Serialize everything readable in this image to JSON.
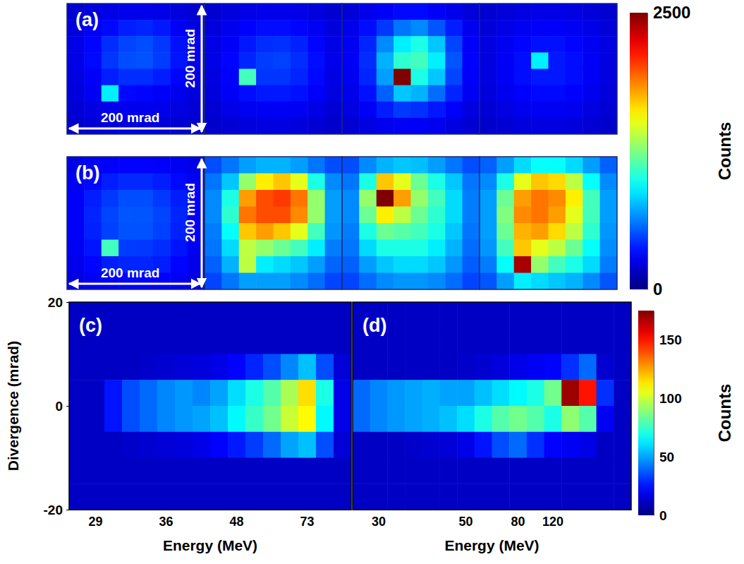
{
  "chart_data": [
    {
      "type": "heatmap",
      "title": "(a)",
      "annotations": [
        "200 mrad",
        "200 mrad"
      ],
      "tick_labels": false,
      "xlim": [
        -100,
        100
      ],
      "ylim": [
        -100,
        100
      ],
      "colorbar": {
        "range": [
          0,
          2500
        ],
        "ticks": [
          0,
          2500
        ],
        "label": "Counts"
      },
      "panels": [
        {
          "cells": [
            [
              200,
              230,
              250,
              260,
              260,
              250,
              230,
              200
            ],
            [
              230,
              280,
              330,
              380,
              400,
              370,
              300,
              240
            ],
            [
              250,
              320,
              420,
              480,
              500,
              450,
              350,
              260
            ],
            [
              250,
              330,
              440,
              500,
              510,
              460,
              360,
              260
            ],
            [
              240,
              300,
              380,
              420,
              420,
              380,
              320,
              250
            ],
            [
              230,
              280,
              900,
              330,
              320,
              300,
              270,
              230
            ],
            [
              210,
              240,
              260,
              270,
              270,
              260,
              240,
              210
            ],
            [
              190,
              210,
              220,
              230,
              230,
              220,
              210,
              190
            ]
          ]
        },
        {
          "cells": [
            [
              200,
              230,
              250,
              260,
              260,
              250,
              230,
              200
            ],
            [
              230,
              270,
              310,
              340,
              340,
              320,
              280,
              230
            ],
            [
              250,
              300,
              370,
              420,
              430,
              390,
              320,
              250
            ],
            [
              250,
              320,
              400,
              460,
              470,
              420,
              340,
              260
            ],
            [
              240,
              310,
              1100,
              440,
              440,
              400,
              330,
              250
            ],
            [
              230,
              290,
              340,
              370,
              370,
              350,
              300,
              240
            ],
            [
              210,
              250,
              280,
              290,
              290,
              280,
              250,
              210
            ],
            [
              190,
              210,
              230,
              240,
              240,
              230,
              210,
              190
            ]
          ]
        },
        {
          "cells": [
            [
              220,
              260,
              300,
              330,
              330,
              300,
              260,
              220
            ],
            [
              260,
              340,
              450,
              600,
              650,
              520,
              380,
              270
            ],
            [
              280,
              400,
              650,
              900,
              1000,
              800,
              480,
              300
            ],
            [
              290,
              420,
              750,
              1050,
              1100,
              900,
              520,
              310
            ],
            [
              280,
              400,
              700,
              2500,
              1000,
              800,
              480,
              300
            ],
            [
              260,
              350,
              550,
              800,
              750,
              580,
              400,
              280
            ],
            [
              240,
              290,
              380,
              450,
              430,
              370,
              300,
              240
            ],
            [
              210,
              240,
              270,
              290,
              290,
              270,
              240,
              210
            ]
          ]
        },
        {
          "cells": [
            [
              200,
              220,
              240,
              250,
              250,
              240,
              220,
              200
            ],
            [
              220,
              250,
              280,
              300,
              300,
              280,
              250,
              220
            ],
            [
              240,
              280,
              320,
              350,
              350,
              320,
              280,
              240
            ],
            [
              240,
              290,
              340,
              900,
              370,
              340,
              290,
              240
            ],
            [
              240,
              290,
              340,
              370,
              370,
              340,
              290,
              240
            ],
            [
              230,
              270,
              310,
              330,
              330,
              310,
              270,
              230
            ],
            [
              210,
              240,
              270,
              280,
              280,
              270,
              240,
              210
            ],
            [
              190,
              210,
              230,
              240,
              240,
              230,
              210,
              190
            ]
          ]
        }
      ]
    },
    {
      "type": "heatmap",
      "title": "(b)",
      "annotations": [
        "200 mrad",
        "200 mrad"
      ],
      "tick_labels": false,
      "xlim": [
        -100,
        100
      ],
      "ylim": [
        -100,
        100
      ],
      "panels": [
        {
          "cells": [
            [
              250,
              280,
              300,
              310,
              310,
              300,
              280,
              250
            ],
            [
              280,
              330,
              380,
              410,
              410,
              380,
              330,
              280
            ],
            [
              300,
              380,
              450,
              500,
              500,
              450,
              380,
              300
            ],
            [
              300,
              400,
              480,
              520,
              520,
              480,
              400,
              300
            ],
            [
              300,
              390,
              470,
              510,
              510,
              470,
              390,
              300
            ],
            [
              280,
              360,
              1100,
              460,
              450,
              420,
              360,
              280
            ],
            [
              260,
              320,
              380,
              400,
              400,
              380,
              320,
              260
            ],
            [
              240,
              280,
              310,
              320,
              320,
              310,
              280,
              240
            ]
          ]
        },
        {
          "cells": [
            [
              500,
              600,
              700,
              750,
              750,
              700,
              600,
              500
            ],
            [
              600,
              800,
              1300,
              1600,
              1700,
              1500,
              1000,
              650
            ],
            [
              650,
              1000,
              1800,
              2000,
              2050,
              1900,
              1300,
              700
            ],
            [
              650,
              1050,
              1900,
              2000,
              2000,
              1850,
              1300,
              700
            ],
            [
              620,
              950,
              1700,
              1800,
              1700,
              1500,
              1100,
              680
            ],
            [
              600,
              850,
              1400,
              1300,
              1200,
              1100,
              900,
              620
            ],
            [
              550,
              750,
              1400,
              900,
              850,
              800,
              700,
              560
            ],
            [
              480,
              600,
              700,
              700,
              700,
              650,
              580,
              480
            ]
          ]
        },
        {
          "cells": [
            [
              500,
              650,
              750,
              800,
              780,
              700,
              600,
              500
            ],
            [
              600,
              1000,
              1700,
              1500,
              1200,
              1000,
              800,
              600
            ],
            [
              650,
              1300,
              2500,
              1800,
              1300,
              1100,
              850,
              620
            ],
            [
              650,
              1200,
              1600,
              1400,
              1200,
              1050,
              850,
              620
            ],
            [
              620,
              1000,
              1200,
              1150,
              1100,
              1000,
              800,
              600
            ],
            [
              600,
              850,
              1000,
              1000,
              1000,
              900,
              750,
              580
            ],
            [
              550,
              700,
              800,
              850,
              850,
              800,
              680,
              540
            ],
            [
              480,
              580,
              650,
              680,
              680,
              650,
              580,
              480
            ]
          ]
        },
        {
          "cells": [
            [
              550,
              700,
              850,
              950,
              950,
              850,
              700,
              550
            ],
            [
              650,
              1000,
              1500,
              1700,
              1650,
              1400,
              950,
              650
            ],
            [
              700,
              1200,
              1800,
              1900,
              1850,
              1600,
              1100,
              700
            ],
            [
              700,
              1250,
              1850,
              1900,
              1800,
              1500,
              1100,
              700
            ],
            [
              700,
              1200,
              1750,
              1800,
              1650,
              1400,
              1050,
              680
            ],
            [
              680,
              1100,
              1700,
              1500,
              1400,
              1200,
              950,
              660
            ],
            [
              620,
              950,
              2400,
              1300,
              1100,
              1000,
              850,
              620
            ],
            [
              520,
              700,
              900,
              850,
              800,
              750,
              650,
              520
            ]
          ]
        }
      ]
    },
    {
      "type": "heatmap",
      "title": "(c)",
      "xlabel": "Energy (MeV)",
      "ylabel": "Divergence (mrad)",
      "categories": [
        null,
        "29",
        null,
        null,
        null,
        "36",
        null,
        null,
        null,
        "48",
        null,
        null,
        null,
        "73",
        null,
        null
      ],
      "ylim": [
        -20,
        20
      ],
      "yticks": [
        20,
        0,
        -20
      ],
      "cells": [
        [
          12,
          12,
          12,
          12,
          12,
          12,
          12,
          12,
          12,
          12,
          12,
          12,
          12,
          12,
          12,
          12
        ],
        [
          12,
          12,
          12,
          12,
          12,
          12,
          12,
          12,
          12,
          12,
          12,
          12,
          12,
          12,
          12,
          12
        ],
        [
          12,
          12,
          12,
          12,
          13,
          14,
          15,
          16,
          18,
          22,
          28,
          35,
          45,
          55,
          35,
          15
        ],
        [
          12,
          12,
          25,
          35,
          40,
          45,
          48,
          45,
          50,
          60,
          70,
          80,
          95,
          115,
          70,
          18
        ],
        [
          12,
          12,
          25,
          35,
          40,
          45,
          48,
          50,
          55,
          65,
          75,
          85,
          100,
          110,
          65,
          18
        ],
        [
          12,
          12,
          12,
          13,
          14,
          15,
          16,
          18,
          22,
          26,
          32,
          40,
          50,
          55,
          35,
          15
        ],
        [
          12,
          12,
          12,
          12,
          12,
          12,
          12,
          12,
          12,
          12,
          12,
          12,
          12,
          12,
          12,
          12
        ],
        [
          12,
          12,
          12,
          12,
          12,
          12,
          12,
          12,
          12,
          12,
          12,
          12,
          12,
          12,
          12,
          12
        ]
      ]
    },
    {
      "type": "heatmap",
      "title": "(d)",
      "xlabel": "Energy (MeV)",
      "tick_labels": "x",
      "categories": [
        null,
        "30",
        null,
        null,
        null,
        null,
        "50",
        null,
        null,
        "80",
        null,
        "120",
        null,
        null,
        null,
        null
      ],
      "ylim": [
        -20,
        20
      ],
      "colorbar": {
        "range": [
          0,
          175
        ],
        "ticks": [
          0,
          50,
          100,
          150
        ],
        "label": "Counts"
      },
      "cells": [
        [
          12,
          12,
          12,
          12,
          12,
          12,
          12,
          12,
          12,
          12,
          12,
          12,
          12,
          12,
          12,
          12
        ],
        [
          12,
          12,
          12,
          12,
          12,
          12,
          12,
          12,
          12,
          12,
          12,
          12,
          12,
          12,
          12,
          12
        ],
        [
          12,
          12,
          12,
          12,
          12,
          12,
          13,
          14,
          16,
          18,
          20,
          22,
          30,
          40,
          14,
          12
        ],
        [
          40,
          45,
          48,
          50,
          52,
          50,
          50,
          55,
          60,
          65,
          70,
          85,
          170,
          150,
          30,
          12
        ],
        [
          40,
          45,
          48,
          50,
          52,
          55,
          60,
          70,
          80,
          85,
          80,
          70,
          90,
          80,
          20,
          12
        ],
        [
          12,
          12,
          12,
          13,
          14,
          15,
          18,
          25,
          35,
          40,
          30,
          22,
          20,
          18,
          12,
          12
        ],
        [
          12,
          12,
          12,
          12,
          12,
          12,
          12,
          12,
          12,
          12,
          12,
          12,
          12,
          12,
          12,
          12
        ],
        [
          12,
          12,
          12,
          12,
          12,
          12,
          12,
          12,
          12,
          12,
          12,
          12,
          12,
          12,
          12,
          12
        ]
      ]
    }
  ]
}
